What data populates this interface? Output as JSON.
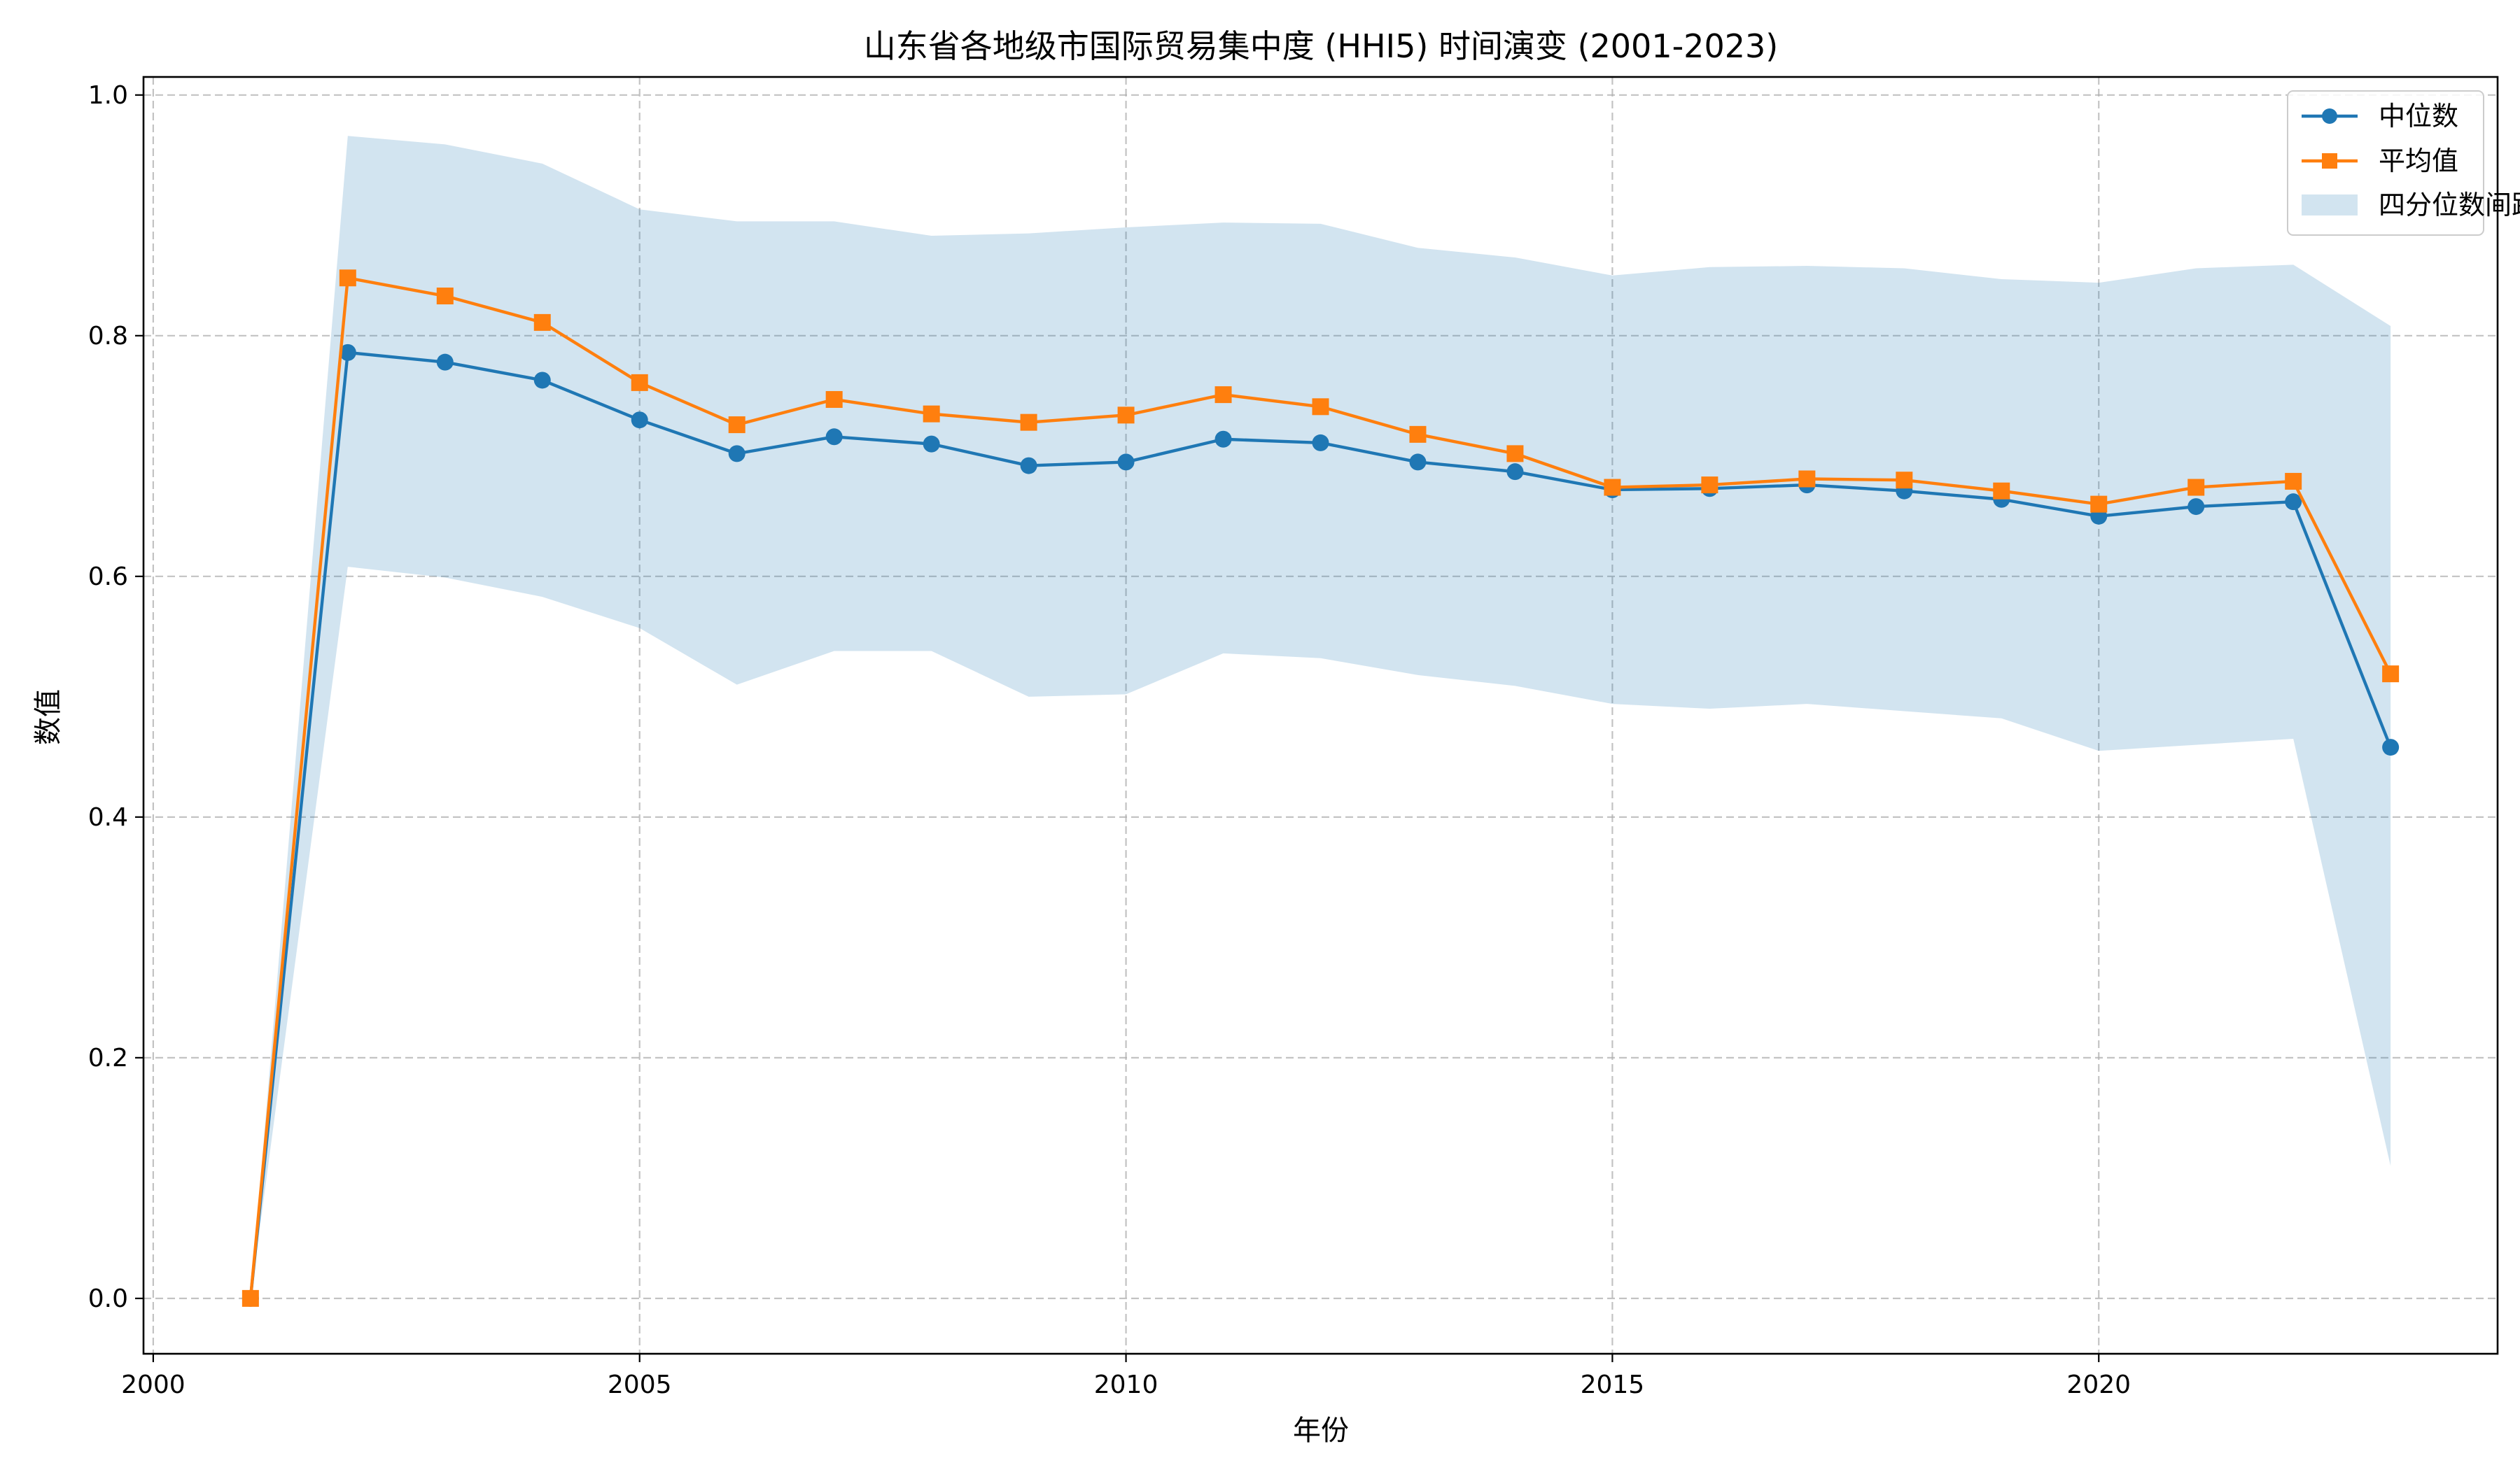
{
  "chart_data": {
    "type": "line",
    "title": "山东省各地级市国际贸易集中度 (HHI5) 时间演变 (2001-2023)",
    "xlabel": "年份",
    "ylabel": "数值",
    "xlim": [
      1999.9,
      2024.1
    ],
    "ylim": [
      -0.046,
      1.015
    ],
    "xticks": [
      2000,
      2005,
      2010,
      2015,
      2020
    ],
    "yticks": [
      0.0,
      0.2,
      0.4,
      0.6,
      0.8,
      1.0
    ],
    "xtick_labels": [
      "2000",
      "2005",
      "2010",
      "2015",
      "2020"
    ],
    "ytick_labels": [
      "0.0",
      "0.2",
      "0.4",
      "0.6",
      "0.8",
      "1.0"
    ],
    "grid": true,
    "legend_position": "top-right",
    "x": [
      2001,
      2002,
      2003,
      2004,
      2005,
      2006,
      2007,
      2008,
      2009,
      2010,
      2011,
      2012,
      2013,
      2014,
      2015,
      2016,
      2017,
      2018,
      2019,
      2020,
      2021,
      2022,
      2023
    ],
    "series": [
      {
        "name": "中位数",
        "color": "#1f77b4",
        "marker": "circle",
        "values": [
          0.0,
          0.786,
          0.778,
          0.763,
          0.73,
          0.702,
          0.716,
          0.71,
          0.692,
          0.695,
          0.714,
          0.711,
          0.695,
          0.687,
          0.672,
          0.673,
          0.676,
          0.671,
          0.664,
          0.65,
          0.658,
          0.662,
          0.458
        ]
      },
      {
        "name": "平均值",
        "color": "#ff7f0e",
        "marker": "square",
        "values": [
          0.0,
          0.848,
          0.833,
          0.811,
          0.761,
          0.726,
          0.747,
          0.735,
          0.728,
          0.734,
          0.751,
          0.741,
          0.718,
          0.702,
          0.674,
          0.676,
          0.681,
          0.68,
          0.671,
          0.66,
          0.674,
          0.679,
          0.519
        ]
      }
    ],
    "band": {
      "name": "四分位数间距",
      "color": "#1f77b4",
      "opacity": 0.2,
      "lower": [
        0.0,
        0.608,
        0.599,
        0.583,
        0.557,
        0.51,
        0.538,
        0.538,
        0.5,
        0.502,
        0.536,
        0.532,
        0.518,
        0.509,
        0.494,
        0.49,
        0.494,
        0.488,
        0.482,
        0.455,
        0.46,
        0.465,
        0.11
      ],
      "upper": [
        0.0,
        0.966,
        0.959,
        0.943,
        0.905,
        0.895,
        0.895,
        0.883,
        0.885,
        0.89,
        0.894,
        0.893,
        0.873,
        0.865,
        0.85,
        0.857,
        0.858,
        0.856,
        0.847,
        0.844,
        0.856,
        0.859,
        0.808
      ]
    }
  }
}
